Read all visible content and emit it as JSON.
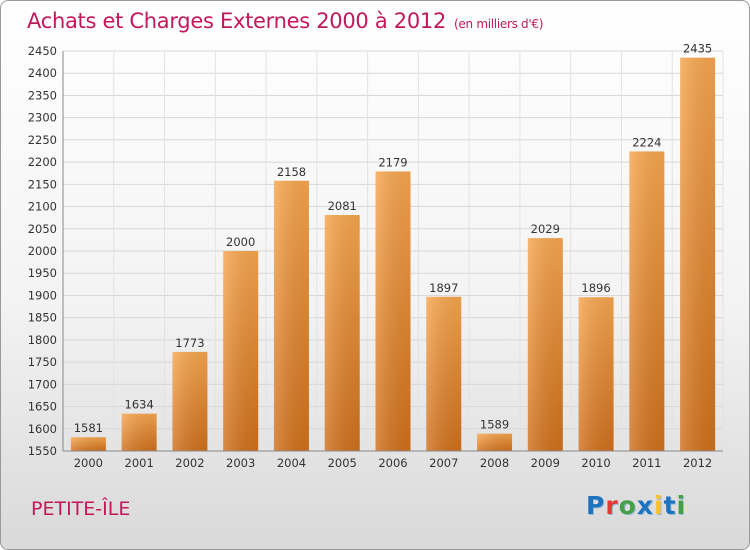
{
  "header": {
    "title": "Achats et Charges Externes 2000 à 2012",
    "unit": "(en milliers d'€)"
  },
  "footer": {
    "place": "PETITE-ÎLE",
    "logo_letters": [
      "P",
      "r",
      "o",
      "x",
      "i",
      "t",
      "i"
    ]
  },
  "colors": {
    "title": "#c2185b",
    "bar_light": "#f6a04a",
    "bar_dark": "#cf6e1a",
    "grid": "#dcdcdc",
    "logo": [
      "#1e73be",
      "#e53935",
      "#43a047",
      "#1e73be",
      "#fbc02d",
      "#1e73be",
      "#43a047"
    ]
  },
  "chart_data": {
    "type": "bar",
    "title": "Achats et Charges Externes 2000 à 2012",
    "subtitle": "(en milliers d'€)",
    "categories": [
      "2000",
      "2001",
      "2002",
      "2003",
      "2004",
      "2005",
      "2006",
      "2007",
      "2008",
      "2009",
      "2010",
      "2011",
      "2012"
    ],
    "values": [
      1581,
      1634,
      1773,
      2000,
      2158,
      2081,
      2179,
      1897,
      1589,
      2029,
      1896,
      2224,
      2435
    ],
    "ylim": [
      1550,
      2450
    ],
    "yticks": [
      1550,
      1600,
      1650,
      1700,
      1750,
      1800,
      1850,
      1900,
      1950,
      2000,
      2050,
      2100,
      2150,
      2200,
      2250,
      2300,
      2350,
      2400,
      2450
    ],
    "grid": true
  }
}
